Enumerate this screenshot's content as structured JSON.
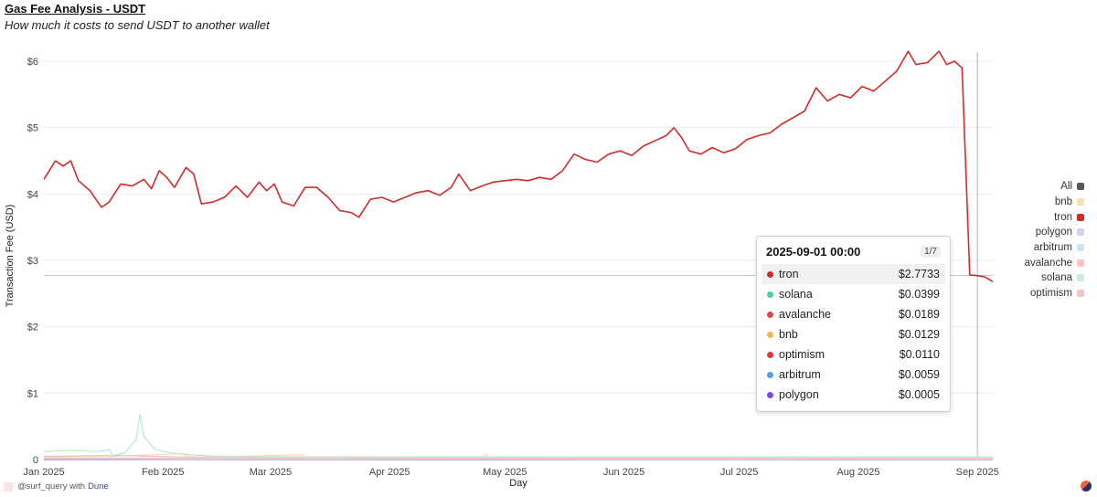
{
  "title": "Gas Fee Analysis - USDT",
  "subtitle": "How much it costs to send USDT to another wallet",
  "footer": {
    "handle": "@surf_query with",
    "brand": "Dune"
  },
  "legend": [
    {
      "name": "All",
      "color": "#555555"
    },
    {
      "name": "bnb",
      "color": "#f7e0b0"
    },
    {
      "name": "tron",
      "color": "#d62a2a"
    },
    {
      "name": "polygon",
      "color": "#d9cdf3"
    },
    {
      "name": "arbitrum",
      "color": "#cfe3f7"
    },
    {
      "name": "avalanche",
      "color": "#f6c6c2"
    },
    {
      "name": "solana",
      "color": "#c9efd6"
    },
    {
      "name": "optimism",
      "color": "#f6c3c3"
    }
  ],
  "tooltip": {
    "date": "2025-09-01 00:00",
    "page": "1/7",
    "rows": [
      {
        "name": "tron",
        "value": "$2.7733",
        "color": "#d62a2a"
      },
      {
        "name": "solana",
        "value": "$0.0399",
        "color": "#4ad38a"
      },
      {
        "name": "avalanche",
        "value": "$0.0189",
        "color": "#e8473d"
      },
      {
        "name": "bnb",
        "value": "$0.0129",
        "color": "#f0b94a"
      },
      {
        "name": "optimism",
        "value": "$0.0110",
        "color": "#e8323c"
      },
      {
        "name": "arbitrum",
        "value": "$0.0059",
        "color": "#4aa3e8"
      },
      {
        "name": "polygon",
        "value": "$0.0005",
        "color": "#7b4ae8"
      }
    ]
  },
  "chart_data": {
    "type": "line",
    "title": "Gas Fee Analysis - USDT",
    "subtitle": "How much it costs to send USDT to another wallet",
    "xlabel": "Day",
    "ylabel": "Transaction Fee (USD)",
    "ylim": [
      0,
      6.5
    ],
    "yticks": [
      0,
      1,
      2,
      3,
      4,
      5,
      6
    ],
    "ytick_labels": [
      "0",
      "$1",
      "$2",
      "$3",
      "$4",
      "$5",
      "$6"
    ],
    "xticks": [
      "2025-01-01",
      "2025-02-01",
      "2025-03-01",
      "2025-04-01",
      "2025-05-01",
      "2025-06-01",
      "2025-07-01",
      "2025-08-01",
      "2025-09-01"
    ],
    "xtick_labels": [
      "Jan 2025",
      "Feb 2025",
      "Mar 2025",
      "Apr 2025",
      "May 2025",
      "Jun 2025",
      "Jul 2025",
      "Aug 2025",
      "Sep 2025"
    ],
    "xlim": [
      "2025-01-01",
      "2025-09-05"
    ],
    "grid": true,
    "legend_position": "right",
    "series": [
      {
        "name": "tron",
        "color": "#d62a2a",
        "points": [
          [
            "2025-01-01",
            4.22
          ],
          [
            "2025-01-04",
            4.5
          ],
          [
            "2025-01-06",
            4.42
          ],
          [
            "2025-01-08",
            4.5
          ],
          [
            "2025-01-10",
            4.2
          ],
          [
            "2025-01-13",
            4.05
          ],
          [
            "2025-01-16",
            3.8
          ],
          [
            "2025-01-18",
            3.88
          ],
          [
            "2025-01-21",
            4.15
          ],
          [
            "2025-01-24",
            4.12
          ],
          [
            "2025-01-27",
            4.22
          ],
          [
            "2025-01-29",
            4.08
          ],
          [
            "2025-01-31",
            4.35
          ],
          [
            "2025-02-02",
            4.25
          ],
          [
            "2025-02-04",
            4.1
          ],
          [
            "2025-02-07",
            4.4
          ],
          [
            "2025-02-09",
            4.3
          ],
          [
            "2025-02-11",
            3.85
          ],
          [
            "2025-02-14",
            3.88
          ],
          [
            "2025-02-17",
            3.95
          ],
          [
            "2025-02-20",
            4.12
          ],
          [
            "2025-02-23",
            3.95
          ],
          [
            "2025-02-26",
            4.18
          ],
          [
            "2025-02-28",
            4.05
          ],
          [
            "2025-03-02",
            4.15
          ],
          [
            "2025-03-04",
            3.88
          ],
          [
            "2025-03-07",
            3.82
          ],
          [
            "2025-03-10",
            4.1
          ],
          [
            "2025-03-13",
            4.1
          ],
          [
            "2025-03-16",
            3.95
          ],
          [
            "2025-03-19",
            3.75
          ],
          [
            "2025-03-22",
            3.72
          ],
          [
            "2025-03-24",
            3.65
          ],
          [
            "2025-03-27",
            3.92
          ],
          [
            "2025-03-30",
            3.95
          ],
          [
            "2025-04-02",
            3.88
          ],
          [
            "2025-04-05",
            3.95
          ],
          [
            "2025-04-08",
            4.02
          ],
          [
            "2025-04-11",
            4.05
          ],
          [
            "2025-04-14",
            3.98
          ],
          [
            "2025-04-17",
            4.1
          ],
          [
            "2025-04-19",
            4.3
          ],
          [
            "2025-04-22",
            4.05
          ],
          [
            "2025-04-25",
            4.12
          ],
          [
            "2025-04-28",
            4.18
          ],
          [
            "2025-05-01",
            4.2
          ],
          [
            "2025-05-04",
            4.22
          ],
          [
            "2025-05-07",
            4.2
          ],
          [
            "2025-05-10",
            4.25
          ],
          [
            "2025-05-13",
            4.22
          ],
          [
            "2025-05-16",
            4.35
          ],
          [
            "2025-05-19",
            4.6
          ],
          [
            "2025-05-22",
            4.52
          ],
          [
            "2025-05-25",
            4.48
          ],
          [
            "2025-05-28",
            4.6
          ],
          [
            "2025-05-31",
            4.65
          ],
          [
            "2025-06-03",
            4.58
          ],
          [
            "2025-06-06",
            4.72
          ],
          [
            "2025-06-09",
            4.8
          ],
          [
            "2025-06-12",
            4.88
          ],
          [
            "2025-06-14",
            5.0
          ],
          [
            "2025-06-16",
            4.85
          ],
          [
            "2025-06-18",
            4.65
          ],
          [
            "2025-06-21",
            4.6
          ],
          [
            "2025-06-24",
            4.7
          ],
          [
            "2025-06-27",
            4.62
          ],
          [
            "2025-06-30",
            4.68
          ],
          [
            "2025-07-03",
            4.82
          ],
          [
            "2025-07-06",
            4.88
          ],
          [
            "2025-07-09",
            4.92
          ],
          [
            "2025-07-12",
            5.05
          ],
          [
            "2025-07-15",
            5.15
          ],
          [
            "2025-07-18",
            5.25
          ],
          [
            "2025-07-21",
            5.6
          ],
          [
            "2025-07-24",
            5.4
          ],
          [
            "2025-07-27",
            5.5
          ],
          [
            "2025-07-30",
            5.45
          ],
          [
            "2025-08-02",
            5.62
          ],
          [
            "2025-08-05",
            5.55
          ],
          [
            "2025-08-08",
            5.7
          ],
          [
            "2025-08-11",
            5.85
          ],
          [
            "2025-08-14",
            6.15
          ],
          [
            "2025-08-16",
            5.95
          ],
          [
            "2025-08-19",
            5.98
          ],
          [
            "2025-08-22",
            6.15
          ],
          [
            "2025-08-24",
            5.95
          ],
          [
            "2025-08-26",
            6.0
          ],
          [
            "2025-08-28",
            5.9
          ],
          [
            "2025-08-30",
            2.78
          ],
          [
            "2025-09-01",
            2.77
          ],
          [
            "2025-09-03",
            2.75
          ],
          [
            "2025-09-05",
            2.68
          ]
        ]
      },
      {
        "name": "solana",
        "color": "#b6ebc9",
        "points": [
          [
            "2025-01-01",
            0.12
          ],
          [
            "2025-01-08",
            0.14
          ],
          [
            "2025-01-15",
            0.12
          ],
          [
            "2025-01-18",
            0.15
          ],
          [
            "2025-01-19",
            0.06
          ],
          [
            "2025-01-22",
            0.1
          ],
          [
            "2025-01-25",
            0.3
          ],
          [
            "2025-01-26",
            0.68
          ],
          [
            "2025-01-27",
            0.35
          ],
          [
            "2025-01-30",
            0.15
          ],
          [
            "2025-02-03",
            0.1
          ],
          [
            "2025-02-08",
            0.07
          ],
          [
            "2025-02-15",
            0.05
          ],
          [
            "2025-03-01",
            0.04
          ],
          [
            "2025-04-01",
            0.04
          ],
          [
            "2025-05-01",
            0.04
          ],
          [
            "2025-06-01",
            0.04
          ],
          [
            "2025-07-01",
            0.04
          ],
          [
            "2025-08-01",
            0.04
          ],
          [
            "2025-09-05",
            0.04
          ]
        ]
      },
      {
        "name": "avalanche",
        "color": "#f2c2bd",
        "points": [
          [
            "2025-01-01",
            0.05
          ],
          [
            "2025-01-20",
            0.06
          ],
          [
            "2025-02-05",
            0.04
          ],
          [
            "2025-03-01",
            0.03
          ],
          [
            "2025-04-01",
            0.025
          ],
          [
            "2025-05-01",
            0.02
          ],
          [
            "2025-06-01",
            0.02
          ],
          [
            "2025-07-01",
            0.02
          ],
          [
            "2025-08-01",
            0.02
          ],
          [
            "2025-09-05",
            0.019
          ]
        ]
      },
      {
        "name": "bnb",
        "color": "#f5dfb0",
        "points": [
          [
            "2025-01-01",
            0.04
          ],
          [
            "2025-01-20",
            0.05
          ],
          [
            "2025-02-06",
            0.09
          ],
          [
            "2025-02-08",
            0.03
          ],
          [
            "2025-03-09",
            0.07
          ],
          [
            "2025-03-10",
            0.02
          ],
          [
            "2025-04-25",
            0.02
          ],
          [
            "2025-04-26",
            0.08
          ],
          [
            "2025-04-27",
            0.02
          ],
          [
            "2025-06-01",
            0.015
          ],
          [
            "2025-08-01",
            0.013
          ],
          [
            "2025-09-05",
            0.013
          ]
        ]
      },
      {
        "name": "optimism",
        "color": "#f3bcbc",
        "points": [
          [
            "2025-01-01",
            0.02
          ],
          [
            "2025-03-01",
            0.015
          ],
          [
            "2025-05-01",
            0.012
          ],
          [
            "2025-07-01",
            0.011
          ],
          [
            "2025-09-05",
            0.011
          ]
        ]
      },
      {
        "name": "arbitrum",
        "color": "#c6ddf5",
        "points": [
          [
            "2025-01-01",
            0.01
          ],
          [
            "2025-04-01",
            0.008
          ],
          [
            "2025-07-01",
            0.006
          ],
          [
            "2025-09-05",
            0.006
          ]
        ]
      },
      {
        "name": "polygon",
        "color": "#7b4ae8",
        "points": [
          [
            "2025-01-01",
            0.002
          ],
          [
            "2025-02-05",
            0.004
          ],
          [
            "2025-05-01",
            0.001
          ],
          [
            "2025-09-05",
            0.0005
          ]
        ]
      }
    ],
    "crosshair": {
      "x": "2025-09-01",
      "y": 2.7733
    }
  }
}
